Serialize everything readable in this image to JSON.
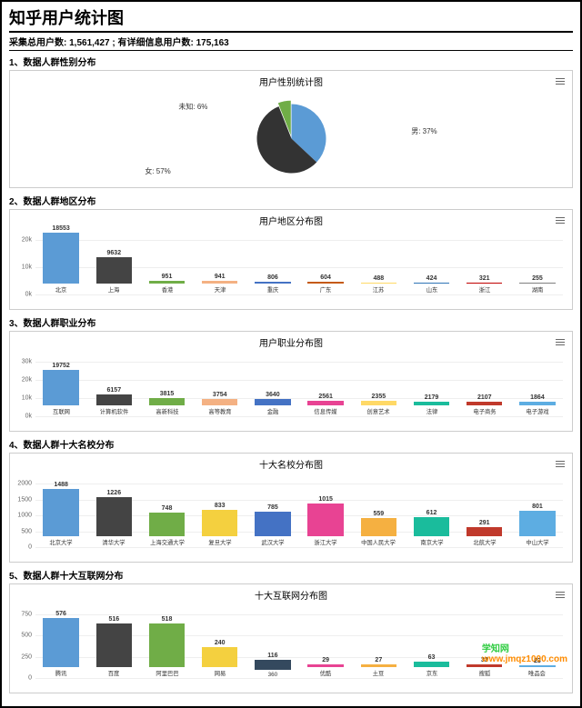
{
  "page": {
    "title": "知乎用户统计图",
    "subtitle": "采集总用户数: 1,561,427 ; 有详细信息用户数: 175,163"
  },
  "watermark": {
    "text1": "学知网",
    "text2": "www.jmqz1000.com"
  },
  "pie": {
    "section_label": "1、数据人群性别分布",
    "title": "用户性别统计图",
    "slices": [
      {
        "name": "男",
        "label": "男: 37%",
        "value": 37,
        "color": "#5b9bd5"
      },
      {
        "name": "女",
        "label": "女: 57%",
        "value": 57,
        "color": "#333333"
      },
      {
        "name": "未知",
        "label": "未知: 6%",
        "value": 6,
        "color": "#70ad47"
      }
    ],
    "bg": "#ffffff"
  },
  "region": {
    "section_label": "2、数据人群地区分布",
    "title": "用户地区分布图",
    "ylim": [
      0,
      20000
    ],
    "yticks": [
      "0k",
      "10k",
      "20k"
    ],
    "categories": [
      "北京",
      "上海",
      "香港",
      "天津",
      "重庆",
      "广东",
      "江苏",
      "山东",
      "浙江",
      "湖南"
    ],
    "values": [
      18553,
      9632,
      951,
      941,
      806,
      604,
      488,
      424,
      321,
      255
    ],
    "colors": [
      "#5b9bd5",
      "#444444",
      "#70ad47",
      "#f4b183",
      "#4472c4",
      "#c55a11",
      "#ffd966",
      "#2e75b6",
      "#c00000",
      "#7f7f7f"
    ]
  },
  "job": {
    "section_label": "3、数据人群职业分布",
    "title": "用户职业分布图",
    "ylim": [
      0,
      30000
    ],
    "yticks": [
      "0k",
      "10k",
      "20k",
      "30k"
    ],
    "categories": [
      "互联网",
      "计算机软件",
      "高新科技",
      "高等教育",
      "金融",
      "信息传媒",
      "创意艺术",
      "法律",
      "电子商务",
      "电子游戏"
    ],
    "values": [
      19752,
      6157,
      3815,
      3754,
      3640,
      2561,
      2355,
      2179,
      2107,
      1864
    ],
    "colors": [
      "#5b9bd5",
      "#444444",
      "#70ad47",
      "#f4b183",
      "#4472c4",
      "#e84393",
      "#ffd966",
      "#1abc9c",
      "#c0392b",
      "#5dade2"
    ]
  },
  "school": {
    "section_label": "4、数据人群十大名校分布",
    "title": "十大名校分布图",
    "ylim": [
      0,
      2000
    ],
    "yticks": [
      "0",
      "500",
      "1000",
      "1500",
      "2000"
    ],
    "categories": [
      "北京大学",
      "清华大学",
      "上海交通大学",
      "复旦大学",
      "武汉大学",
      "浙江大学",
      "中国人民大学",
      "南京大学",
      "北航大学",
      "中山大学"
    ],
    "values": [
      1488,
      1226,
      748,
      833,
      785,
      1015,
      559,
      612,
      291,
      801
    ],
    "colors": [
      "#5b9bd5",
      "#444444",
      "#70ad47",
      "#f4d03f",
      "#4472c4",
      "#e84393",
      "#f5b041",
      "#1abc9c",
      "#c0392b",
      "#5dade2"
    ]
  },
  "internet": {
    "section_label": "5、数据人群十大互联网分布",
    "title": "十大互联网分布图",
    "ylim": [
      0,
      750
    ],
    "yticks": [
      "0",
      "250",
      "500",
      "750"
    ],
    "categories": [
      "腾讯",
      "百度",
      "阿里巴巴",
      "网易",
      "360",
      "优酷",
      "土豆",
      "京东",
      "搜狐",
      "唯品会"
    ],
    "values": [
      576,
      516,
      518,
      240,
      116,
      29,
      27,
      63,
      33,
      23
    ],
    "colors": [
      "#5b9bd5",
      "#444444",
      "#70ad47",
      "#f4d03f",
      "#34495e",
      "#e84393",
      "#f5b041",
      "#1abc9c",
      "#c0392b",
      "#5dade2"
    ]
  }
}
